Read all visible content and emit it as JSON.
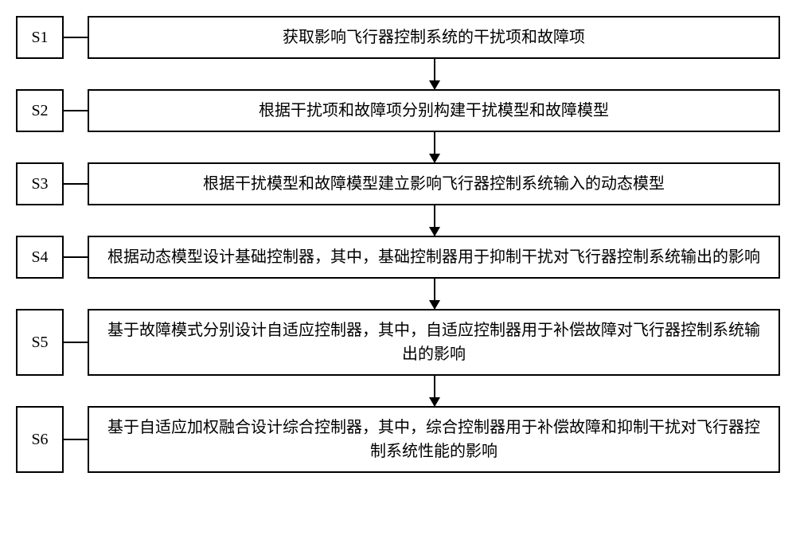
{
  "flowchart": {
    "type": "flowchart",
    "direction": "vertical",
    "background_color": "#ffffff",
    "border_color": "#000000",
    "text_color": "#000000",
    "font_size_pt": 15,
    "box_border_width": 2,
    "arrow_color": "#000000",
    "steps": [
      {
        "id": "S1",
        "text": "获取影响飞行器控制系统的干扰项和故障项"
      },
      {
        "id": "S2",
        "text": "根据干扰项和故障项分别构建干扰模型和故障模型"
      },
      {
        "id": "S3",
        "text": "根据干扰模型和故障模型建立影响飞行器控制系统输入的动态模型"
      },
      {
        "id": "S4",
        "text": "根据动态模型设计基础控制器，其中，基础控制器用于抑制干扰对飞行器控制系统输出的影响"
      },
      {
        "id": "S5",
        "text": "基于故障模式分别设计自适应控制器，其中，自适应控制器用于补偿故障对飞行器控制系统输出的影响"
      },
      {
        "id": "S6",
        "text": "基于自适应加权融合设计综合控制器，其中，综合控制器用于补偿故障和抑制干扰对飞行器控制系统性能的影响"
      }
    ],
    "edges": [
      {
        "from": "S1",
        "to": "S2"
      },
      {
        "from": "S2",
        "to": "S3"
      },
      {
        "from": "S3",
        "to": "S4"
      },
      {
        "from": "S4",
        "to": "S5"
      },
      {
        "from": "S5",
        "to": "S6"
      }
    ]
  }
}
